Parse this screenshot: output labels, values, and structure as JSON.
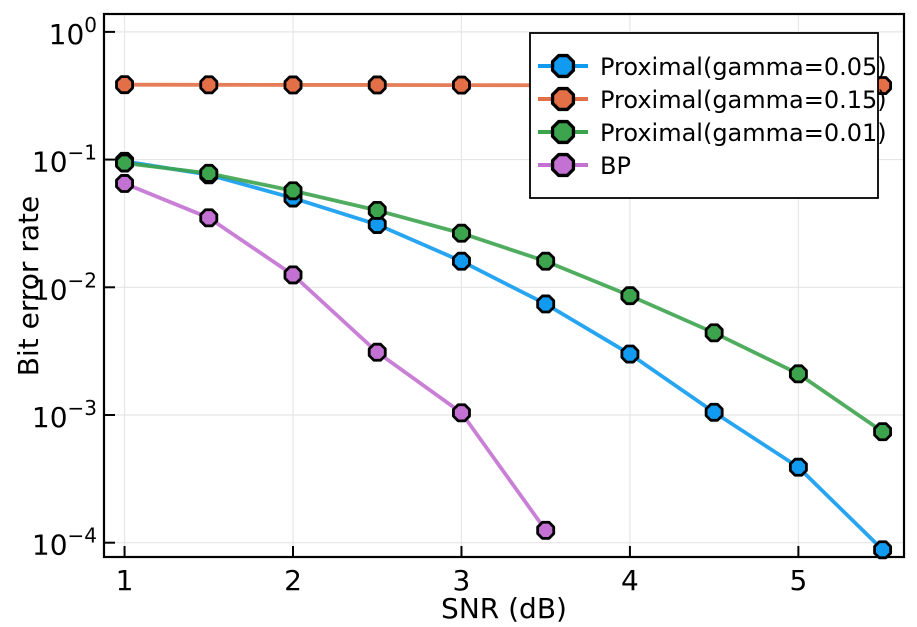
{
  "chart_data": {
    "type": "line",
    "title": "",
    "xlabel": "SNR (dB)",
    "ylabel": "Bit error rate",
    "grid": true,
    "legend_position": "top-right",
    "marker_shape": "octagon",
    "x_ticks": [
      1,
      2,
      3,
      4,
      5
    ],
    "y_tick_exponents": [
      0,
      -1,
      -2,
      -3,
      -4
    ],
    "x_range": [
      0.878,
      5.627
    ],
    "y_log_range": [
      -4.112,
      0.14
    ],
    "series": [
      {
        "name": "Proximal(gamma=0.05)",
        "color": "#109BF0",
        "x": [
          1,
          1.5,
          2,
          2.5,
          3,
          3.5,
          4,
          4.5,
          5,
          5.5
        ],
        "y": [
          0.097,
          0.076,
          0.05,
          0.031,
          0.016,
          0.0074,
          0.003,
          0.00105,
          0.00039,
          8.8e-05
        ]
      },
      {
        "name": "Proximal(gamma=0.15)",
        "color": "#E36F47",
        "x": [
          1,
          1.5,
          2,
          2.5,
          3,
          3.5,
          4,
          4.5,
          5,
          5.5
        ],
        "y": [
          0.386,
          0.385,
          0.384,
          0.384,
          0.383,
          0.382,
          0.382,
          0.381,
          0.381,
          0.38
        ]
      },
      {
        "name": "Proximal(gamma=0.01)",
        "color": "#3DA44E",
        "x": [
          1,
          1.5,
          2,
          2.5,
          3,
          3.5,
          4,
          4.5,
          5,
          5.5
        ],
        "y": [
          0.094,
          0.078,
          0.057,
          0.04,
          0.0265,
          0.016,
          0.0086,
          0.0044,
          0.0021,
          0.00074
        ]
      },
      {
        "name": "BP",
        "color": "#C371D2",
        "x": [
          1,
          1.5,
          2,
          2.5,
          3,
          3.5
        ],
        "y": [
          0.065,
          0.035,
          0.0125,
          0.0031,
          0.00104,
          0.000125
        ]
      }
    ],
    "style_colors": {
      "frame": "#000000",
      "grid": "#e6e6e6",
      "legend_background": "#ffffff",
      "legend_border": "#000000"
    }
  }
}
